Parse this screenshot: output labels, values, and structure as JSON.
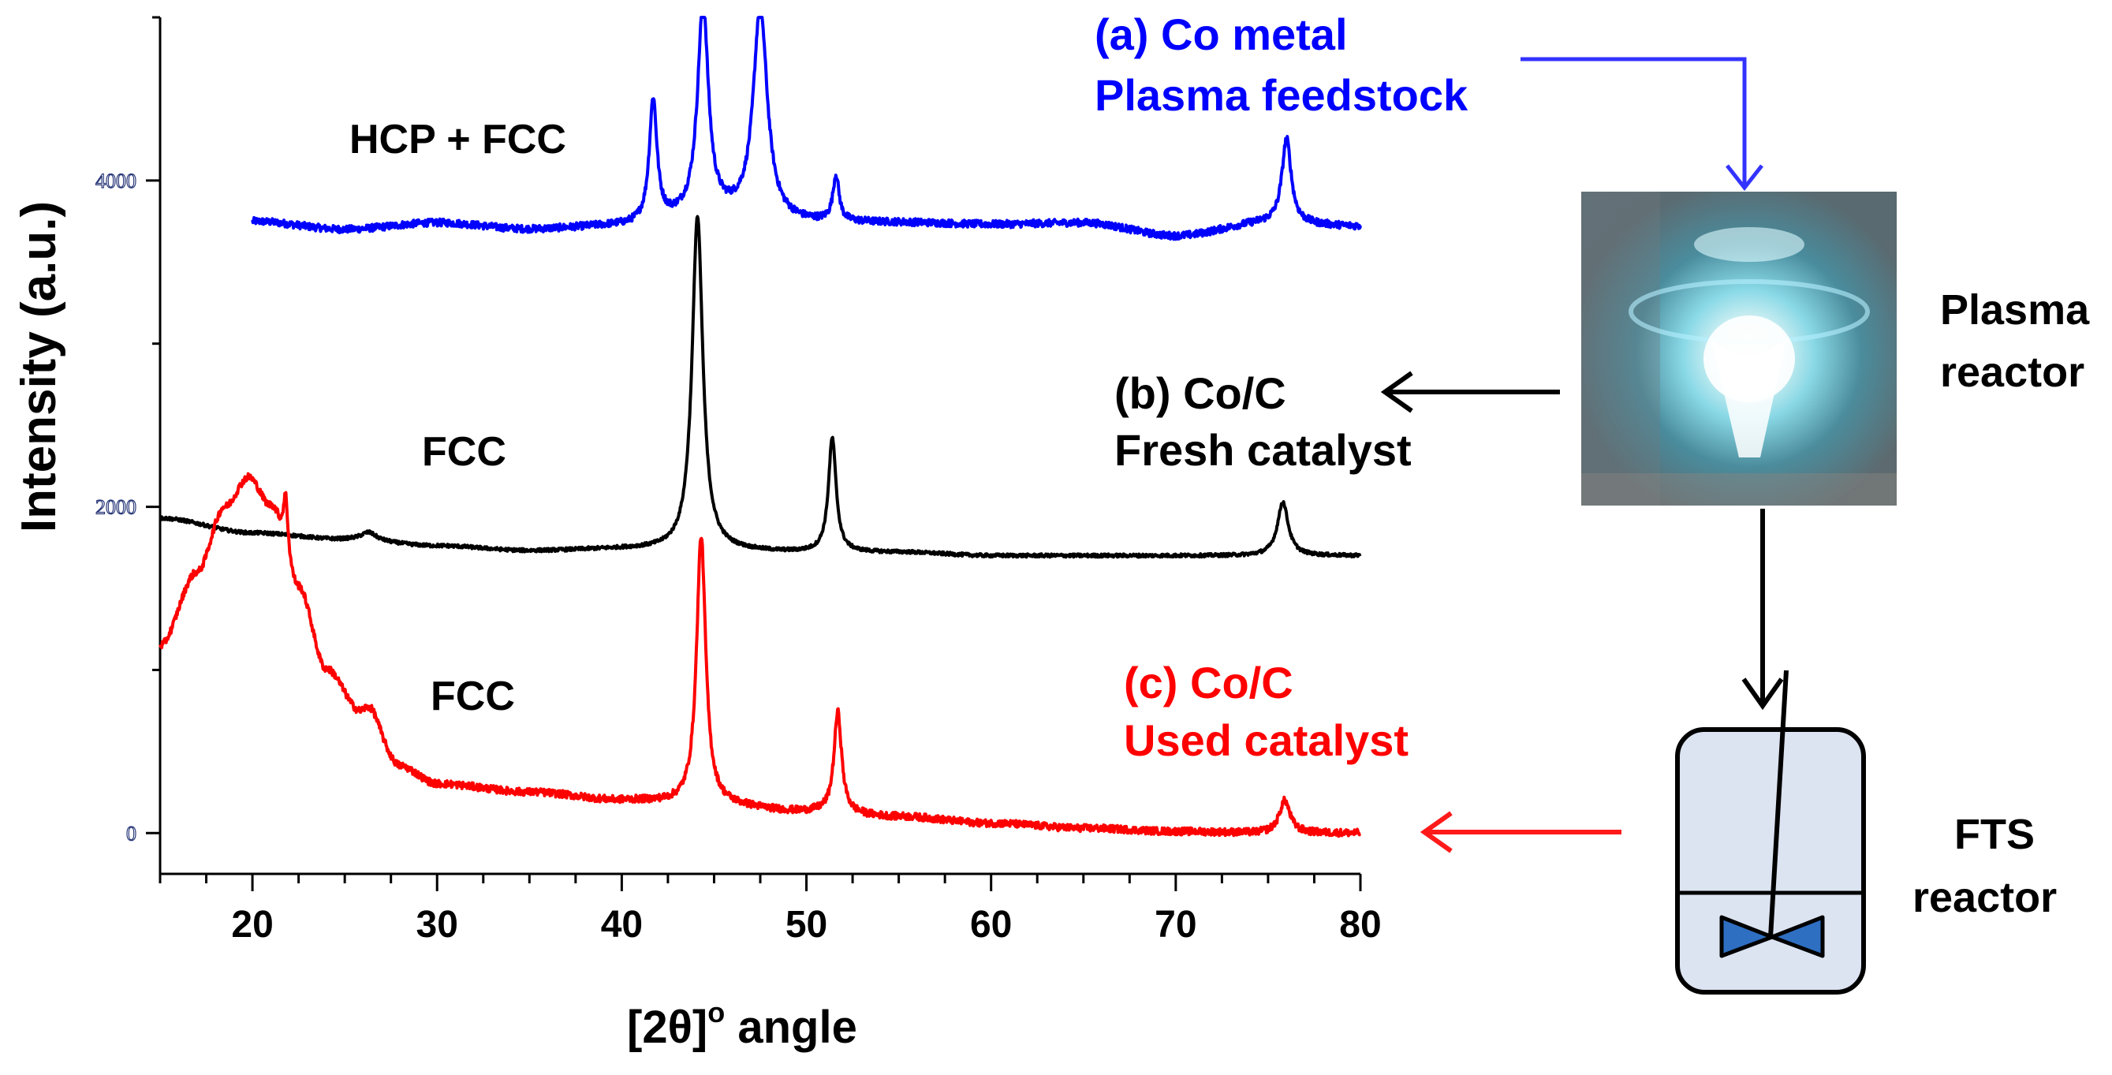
{
  "chart_data": {
    "type": "line",
    "xlabel_main": "[2θ]",
    "xlabel_sup": "o",
    "xlabel_tail": " angle",
    "ylabel": "Intensity (a.u.)",
    "xlim": [
      15,
      80
    ],
    "ylim": [
      -250,
      5000
    ],
    "x_ticks": [
      "20",
      "30",
      "40",
      "50",
      "60",
      "70",
      "80"
    ],
    "y_ticks": [
      "0",
      "2000",
      "4000"
    ],
    "grid": false,
    "series": [
      {
        "name": "(a) Co metal",
        "color": "#0000ff",
        "x_range": [
          20,
          80
        ],
        "baseline": [
          [
            20,
            3750
          ],
          [
            25,
            3700
          ],
          [
            30,
            3740
          ],
          [
            35,
            3700
          ],
          [
            40,
            3720
          ],
          [
            45,
            3780
          ],
          [
            50,
            3740
          ],
          [
            55,
            3740
          ],
          [
            60,
            3730
          ],
          [
            65,
            3740
          ],
          [
            70,
            3660
          ],
          [
            75,
            3740
          ],
          [
            80,
            3720
          ]
        ],
        "peaks": [
          [
            41.7,
            750,
            0.25
          ],
          [
            44.4,
            1300,
            0.35
          ],
          [
            47.5,
            1300,
            0.45
          ],
          [
            51.6,
            280,
            0.2
          ],
          [
            76.0,
            520,
            0.3
          ]
        ],
        "noise": 22
      },
      {
        "name": "(b) Co/C",
        "color": "#000000",
        "x_range": [
          15,
          80
        ],
        "baseline": [
          [
            15,
            1930
          ],
          [
            20,
            1840
          ],
          [
            25,
            1800
          ],
          [
            30,
            1760
          ],
          [
            35,
            1730
          ],
          [
            40,
            1740
          ],
          [
            45,
            1730
          ],
          [
            50,
            1720
          ],
          [
            55,
            1720
          ],
          [
            60,
            1700
          ],
          [
            65,
            1700
          ],
          [
            70,
            1700
          ],
          [
            75,
            1700
          ],
          [
            80,
            1700
          ]
        ],
        "peaks": [
          [
            26.3,
            50,
            0.5
          ],
          [
            44.1,
            2050,
            0.35
          ],
          [
            51.4,
            700,
            0.25
          ],
          [
            75.8,
            330,
            0.35
          ]
        ],
        "noise": 10
      },
      {
        "name": "(c) Co/C",
        "color": "#ff0000",
        "x_range": [
          15,
          80
        ],
        "baseline": [
          [
            15,
            1150
          ],
          [
            17,
            1600
          ],
          [
            18.5,
            2000
          ],
          [
            19.8,
            2180
          ],
          [
            21,
            2000
          ],
          [
            22.5,
            1500
          ],
          [
            24,
            1000
          ],
          [
            26,
            700
          ],
          [
            28,
            400
          ],
          [
            30,
            300
          ],
          [
            35,
            250
          ],
          [
            40,
            200
          ],
          [
            45,
            170
          ],
          [
            50,
            130
          ],
          [
            55,
            100
          ],
          [
            60,
            60
          ],
          [
            65,
            30
          ],
          [
            70,
            10
          ],
          [
            75,
            0
          ],
          [
            80,
            0
          ]
        ],
        "peaks": [
          [
            21.8,
            350,
            0.15
          ],
          [
            26.5,
            100,
            0.6
          ],
          [
            44.3,
            1650,
            0.3
          ],
          [
            51.7,
            620,
            0.25
          ],
          [
            75.9,
            200,
            0.35
          ]
        ],
        "noise": 22
      }
    ],
    "annotations": {
      "phase_a": "HCP + FCC",
      "phase_b": "FCC",
      "phase_c": "FCC"
    }
  },
  "legend": {
    "a_line1": "(a) Co metal",
    "a_line2": "Plasma feedstock",
    "b_line1": "(b) Co/C",
    "b_line2": "Fresh catalyst",
    "c_line1": "(c) Co/C",
    "c_line2": "Used catalyst"
  },
  "process": {
    "plasma_label_1": "Plasma",
    "plasma_label_2": "reactor",
    "fts_label_1": "FTS",
    "fts_label_2": "reactor"
  },
  "colors": {
    "blue": "#0000ff",
    "black": "#000000",
    "red": "#ff0000",
    "arrow_blue": "#3333ff",
    "arrow_red": "#ff1a1a",
    "reactor_fill": "#dce3f1",
    "impeller": "#2e6fc2"
  }
}
